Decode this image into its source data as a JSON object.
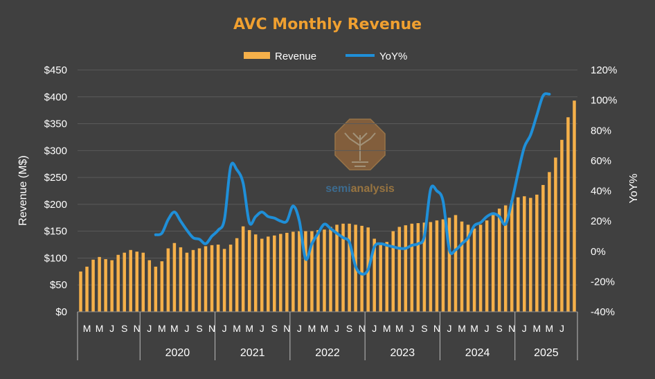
{
  "chart_data": {
    "type": "bar+line",
    "title": "AVC Monthly Revenue",
    "ylabel": "Revenue (M$)",
    "y2label": "YoY%",
    "ylim": [
      0,
      450
    ],
    "y2lim": [
      -0.4,
      1.2
    ],
    "yticks": [
      "$0",
      "$50",
      "$100",
      "$150",
      "$200",
      "$250",
      "$300",
      "$350",
      "$400",
      "$450"
    ],
    "y2ticks": [
      "-40%",
      "-20%",
      "0%",
      "20%",
      "40%",
      "60%",
      "80%",
      "100%",
      "120%"
    ],
    "legend": {
      "position": "top",
      "items": [
        "Revenue",
        "YoY%"
      ]
    },
    "grid": true,
    "colors": {
      "revenue": "#f5b04a",
      "yoy": "#1f8fd8",
      "title": "#f0a030",
      "background": "#404040",
      "grid": "#5a5a5a"
    },
    "month_labels": [
      "M",
      "M",
      "J",
      "S",
      "N",
      "J",
      "M",
      "M",
      "J",
      "S",
      "N",
      "J",
      "M",
      "M",
      "J",
      "S",
      "N",
      "J",
      "M",
      "M",
      "J",
      "S",
      "N",
      "J",
      "M",
      "M",
      "J",
      "S",
      "N",
      "J",
      "M",
      "M",
      "J",
      "S",
      "N",
      "J",
      "M",
      "M",
      "J"
    ],
    "years": [
      "2020",
      "2021",
      "2022",
      "2023",
      "2024",
      "2025"
    ],
    "series": [
      {
        "name": "Revenue",
        "kind": "bar",
        "values": [
          75,
          84,
          97,
          102,
          98,
          96,
          106,
          110,
          115,
          112,
          110,
          96,
          84,
          94,
          118,
          128,
          120,
          110,
          115,
          118,
          122,
          124,
          125,
          117,
          125,
          137,
          159,
          152,
          144,
          136,
          140,
          142,
          145,
          147,
          149,
          150,
          150,
          150,
          152,
          153,
          158,
          162,
          164,
          164,
          162,
          160,
          157,
          136,
          128,
          130,
          150,
          158,
          161,
          164,
          165,
          166,
          167,
          170,
          172,
          175,
          180,
          168,
          162,
          155,
          162,
          170,
          180,
          192,
          198,
          207,
          213,
          215,
          212,
          218,
          236,
          260,
          287,
          320,
          362,
          393
        ]
      },
      {
        "name": "YoY%",
        "kind": "line",
        "start_index": 12,
        "values": [
          0.11,
          0.12,
          0.21,
          0.26,
          0.2,
          0.14,
          0.09,
          0.08,
          0.05,
          0.1,
          0.14,
          0.21,
          0.56,
          0.54,
          0.45,
          0.19,
          0.23,
          0.26,
          0.23,
          0.22,
          0.2,
          0.2,
          0.3,
          0.2,
          -0.05,
          0.05,
          0.12,
          0.18,
          0.15,
          0.12,
          0.09,
          0.06,
          -0.1,
          -0.15,
          -0.12,
          0.03,
          0.05,
          0.04,
          0.03,
          0.02,
          0.02,
          0.04,
          0.05,
          0.1,
          0.41,
          0.4,
          0.33,
          0.01,
          0.01,
          0.05,
          0.09,
          0.17,
          0.19,
          0.23,
          0.25,
          0.23,
          0.18,
          0.33,
          0.52,
          0.69,
          0.77,
          0.9,
          1.03,
          1.04
        ]
      }
    ]
  },
  "watermark": {
    "brand_prefix": "semi",
    "brand_suffix": "analysis"
  }
}
